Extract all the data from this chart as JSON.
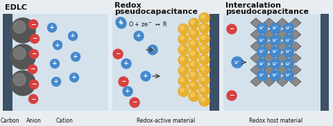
{
  "bg_color": "#e8edf2",
  "panel_bg": "#d5e2ec",
  "electrode_color": "#3d5166",
  "anion_color": "#d94040",
  "cation_color": "#4488cc",
  "redox_material_color": "#e8b030",
  "li_color": "#4488cc",
  "title1": "EDLC",
  "title2a": "Redox",
  "title2b": "pseudocapacitance",
  "title3a": "Intercalation",
  "title3b": "pseudocapacitance",
  "label_carbon": "Carbon",
  "label_anion": "Anion",
  "label_cation": "Cation",
  "label_redox": "Redox-active material",
  "label_host": "Redox host material"
}
